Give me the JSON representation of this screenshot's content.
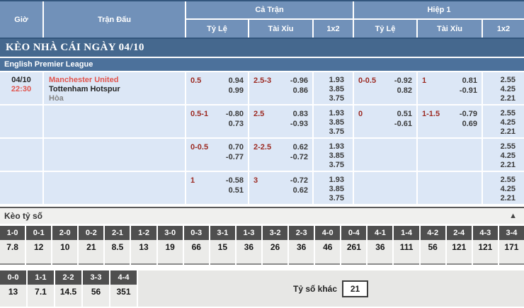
{
  "header": {
    "time": "Giờ",
    "match": "Trận Đấu",
    "full_match": "Cả Trận",
    "first_half": "Hiệp 1",
    "sub": {
      "odds": "Tỷ Lệ",
      "over_under": "Tài Xỉu",
      "one_x_two": "1x2"
    }
  },
  "section_title": "KÈO NHÀ CÁI NGÀY 04/10",
  "league": "English Premier League",
  "match": {
    "date": "04/10",
    "time": "22:30",
    "home": "Manchester United",
    "away": "Tottenham Hotspur",
    "draw": "Hòa"
  },
  "odds_rows": [
    {
      "ft": {
        "hcp": "0.5",
        "hcp_odds": [
          "0.94",
          "0.99"
        ],
        "ou": "2.5-3",
        "ou_odds": [
          "-0.96",
          "0.86"
        ],
        "oxt": [
          "1.93",
          "3.85",
          "3.75"
        ]
      },
      "h1": {
        "hcp": "0-0.5",
        "hcp_odds": [
          "-0.92",
          "0.82"
        ],
        "ou": "1",
        "ou_odds": [
          "0.81",
          "-0.91"
        ],
        "oxt": [
          "2.55",
          "4.25",
          "2.21"
        ]
      }
    },
    {
      "ft": {
        "hcp": "0.5-1",
        "hcp_odds": [
          "-0.80",
          "0.73"
        ],
        "ou": "2.5",
        "ou_odds": [
          "0.83",
          "-0.93"
        ],
        "oxt": [
          "1.93",
          "3.85",
          "3.75"
        ]
      },
      "h1": {
        "hcp": "0",
        "hcp_odds": [
          "0.51",
          "-0.61"
        ],
        "ou": "1-1.5",
        "ou_odds": [
          "-0.79",
          "0.69"
        ],
        "oxt": [
          "2.55",
          "4.25",
          "2.21"
        ]
      }
    },
    {
      "ft": {
        "hcp": "0-0.5",
        "hcp_odds": [
          "0.70",
          "-0.77"
        ],
        "ou": "2-2.5",
        "ou_odds": [
          "0.62",
          "-0.72"
        ],
        "oxt": [
          "1.93",
          "3.85",
          "3.75"
        ]
      },
      "h1": {
        "hcp": "",
        "hcp_odds": [
          "",
          ""
        ],
        "ou": "",
        "ou_odds": [
          "",
          ""
        ],
        "oxt": [
          "2.55",
          "4.25",
          "2.21"
        ]
      }
    },
    {
      "ft": {
        "hcp": "1",
        "hcp_odds": [
          "-0.58",
          "0.51"
        ],
        "ou": "3",
        "ou_odds": [
          "-0.72",
          "0.62"
        ],
        "oxt": [
          "1.93",
          "3.85",
          "3.75"
        ]
      },
      "h1": {
        "hcp": "",
        "hcp_odds": [
          "",
          ""
        ],
        "ou": "",
        "ou_odds": [
          "",
          ""
        ],
        "oxt": [
          "2.55",
          "4.25",
          "2.21"
        ]
      }
    }
  ],
  "score_section": {
    "title": "Kèo tỷ số",
    "collapse_icon": "▲",
    "row1": [
      {
        "score": "1-0",
        "odds": "7.8"
      },
      {
        "score": "0-1",
        "odds": "12"
      },
      {
        "score": "2-0",
        "odds": "10"
      },
      {
        "score": "0-2",
        "odds": "21"
      },
      {
        "score": "2-1",
        "odds": "8.5"
      },
      {
        "score": "1-2",
        "odds": "13"
      },
      {
        "score": "3-0",
        "odds": "19"
      },
      {
        "score": "0-3",
        "odds": "66"
      },
      {
        "score": "3-1",
        "odds": "15"
      },
      {
        "score": "1-3",
        "odds": "36"
      },
      {
        "score": "3-2",
        "odds": "26"
      },
      {
        "score": "2-3",
        "odds": "36"
      },
      {
        "score": "4-0",
        "odds": "46"
      },
      {
        "score": "0-4",
        "odds": "261"
      },
      {
        "score": "4-1",
        "odds": "36"
      },
      {
        "score": "1-4",
        "odds": "111"
      },
      {
        "score": "4-2",
        "odds": "56"
      },
      {
        "score": "2-4",
        "odds": "121"
      },
      {
        "score": "4-3",
        "odds": "121"
      },
      {
        "score": "3-4",
        "odds": "171"
      }
    ],
    "row2": [
      {
        "score": "0-0",
        "odds": "13"
      },
      {
        "score": "1-1",
        "odds": "7.1"
      },
      {
        "score": "2-2",
        "odds": "14.5"
      },
      {
        "score": "3-3",
        "odds": "56"
      },
      {
        "score": "4-4",
        "odds": "351"
      }
    ],
    "other_label": "Tỷ số khác",
    "other_value": "21"
  },
  "colors": {
    "header_blue": "#7191b9",
    "section_bar_blue": "#45688e",
    "league_bar_blue": "#4c719b",
    "row_bg": "#dce7f6",
    "handicap_red": "#9c2a22",
    "team_red": "#e1544d",
    "score_badge_gray": "#4f4f4f"
  }
}
